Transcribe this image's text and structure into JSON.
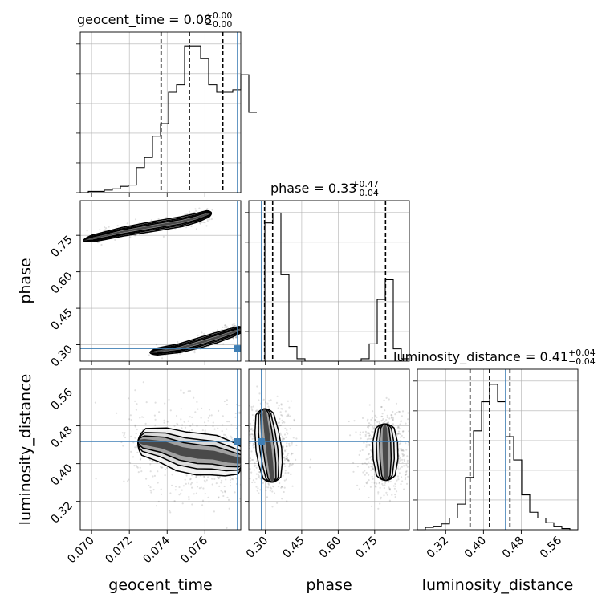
{
  "chart_data": {
    "type": "corner",
    "parameters": [
      {
        "name": "geocent_time",
        "label": "geocent_time",
        "range": [
          0.0694,
          0.0779
        ]
      },
      {
        "name": "phase",
        "label": "phase",
        "range": [
          0.2325,
          0.8925
        ]
      },
      {
        "name": "luminosity_distance",
        "label": "luminosity_distance",
        "range": [
          0.26,
          0.6
        ]
      }
    ],
    "titles": [
      {
        "prefix": "geocent_time = 0.08",
        "sup": "+0.00",
        "sub": "−0.00"
      },
      {
        "prefix": "phase = 0.33",
        "sup": "+0.47",
        "sub": "−0.04"
      },
      {
        "prefix": "luminosity_distance = 0.41",
        "sup": "+0.04",
        "sub": "−0.04"
      }
    ],
    "x_ticks": [
      {
        "values": [
          0.07,
          0.072,
          0.074,
          0.076
        ],
        "labels": [
          "0.070",
          "0.072",
          "0.074",
          "0.076"
        ]
      },
      {
        "values": [
          0.3,
          0.45,
          0.6,
          0.75
        ],
        "labels": [
          "0.30",
          "0.45",
          "0.60",
          "0.75"
        ]
      },
      {
        "values": [
          0.32,
          0.4,
          0.48,
          0.56
        ],
        "labels": [
          "0.32",
          "0.40",
          "0.48",
          "0.56"
        ]
      }
    ],
    "y_ticks": [
      {
        "values": [
          0.3,
          0.45,
          0.6,
          0.75
        ],
        "labels": [
          "0.30",
          "0.45",
          "0.60",
          "0.75"
        ]
      },
      {
        "values": [
          0.32,
          0.4,
          0.48,
          0.56
        ],
        "labels": [
          "0.32",
          "0.40",
          "0.48",
          "0.56"
        ]
      }
    ],
    "histograms": [
      {
        "param": 0,
        "edges_start": 0.0694,
        "bin_width": 0.000425,
        "counts": [
          0,
          1,
          1,
          2,
          3,
          5,
          6,
          20,
          28,
          45,
          55,
          80,
          86,
          117,
          117,
          107,
          86,
          80,
          80,
          82,
          94,
          64
        ],
        "ylim": [
          0,
          128
        ],
        "quantiles": [
          0.07368,
          0.07518,
          0.07695
        ]
      },
      {
        "param": 1,
        "edges_start": 0.2325,
        "bin_width": 0.033,
        "counts": [
          0,
          0,
          112,
          120,
          70,
          12,
          2,
          0,
          0,
          0,
          0,
          0,
          0,
          0,
          2,
          14,
          50,
          66,
          10,
          2
        ],
        "ylim": [
          0,
          130
        ],
        "quantiles": [
          0.2974,
          0.3306,
          0.7947
        ]
      },
      {
        "param": 2,
        "edges_start": 0.26,
        "bin_width": 0.017,
        "counts": [
          0,
          2,
          3,
          5,
          10,
          22,
          45,
          85,
          110,
          125,
          110,
          80,
          60,
          30,
          15,
          10,
          6,
          3,
          1,
          0
        ],
        "ylim": [
          0,
          138
        ],
        "quantiles": [
          0.3716,
          0.4128,
          0.4561
        ]
      }
    ],
    "truths": [
      0.07773,
      0.285,
      0.447
    ],
    "contour_panels": [
      {
        "x_param": 0,
        "y_param": 1,
        "modes": [
          {
            "points": [
              [
                0.07006,
                0.737
              ],
              [
                0.07166,
                0.765
              ],
              [
                0.07336,
                0.788
              ],
              [
                0.07476,
                0.806
              ],
              [
                0.07556,
                0.822
              ],
              [
                0.07616,
                0.838
              ]
            ],
            "hw_scale": 1.0,
            "spread": 0.012
          },
          {
            "points": [
              [
                0.07346,
                0.272
              ],
              [
                0.07466,
                0.286
              ],
              [
                0.07566,
                0.307
              ],
              [
                0.07656,
                0.328
              ],
              [
                0.07736,
                0.348
              ],
              [
                0.07786,
                0.362
              ]
            ],
            "hw_scale": 1.0,
            "spread": 0.014
          }
        ]
      },
      {
        "x_param": 0,
        "y_param": 2,
        "modes": [
          {
            "points": [
              [
                0.07276,
                0.446
              ],
              [
                0.07376,
                0.44
              ],
              [
                0.07476,
                0.426
              ],
              [
                0.07566,
                0.42
              ],
              [
                0.07646,
                0.418
              ],
              [
                0.07726,
                0.41
              ],
              [
                0.07786,
                0.406
              ]
            ],
            "hw_scale": 1.0,
            "spread": 0.035
          }
        ]
      },
      {
        "x_param": 1,
        "y_param": 2,
        "modes": [
          {
            "points": [
              [
                0.298,
                0.505
              ],
              [
                0.306,
                0.468
              ],
              [
                0.315,
                0.43
              ],
              [
                0.322,
                0.4
              ],
              [
                0.328,
                0.37
              ]
            ],
            "hw_scale": 1.0,
            "spread": 0.02
          },
          {
            "points": [
              [
                0.792,
                0.475
              ],
              [
                0.793,
                0.445
              ],
              [
                0.795,
                0.41
              ],
              [
                0.796,
                0.375
              ]
            ],
            "hw_scale": 1.0,
            "spread": 0.02
          }
        ]
      }
    ],
    "grid": true
  }
}
